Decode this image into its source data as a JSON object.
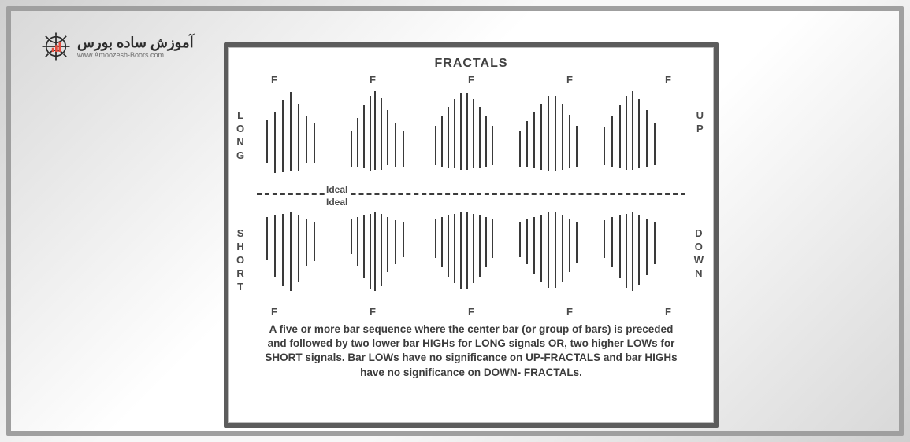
{
  "logo": {
    "line1": "آموزش ساده بورس",
    "line2": "www.Amoozesh-Boors.com"
  },
  "panel": {
    "title": "FRACTALS",
    "labels": {
      "long": "LONG",
      "up": "UP",
      "short": "SHORT",
      "down": "DOWN",
      "F": "F",
      "ideal": "Ideal"
    },
    "f_positions": [
      52,
      158,
      270,
      380,
      490
    ],
    "divider_color": "#3b3b3b",
    "bar_color": "#3a3a3a",
    "groups_top": [
      {
        "bars": [
          [
            0,
            40,
            55
          ],
          [
            10,
            30,
            78
          ],
          [
            20,
            15,
            92
          ],
          [
            30,
            5,
            100
          ],
          [
            40,
            20,
            85
          ],
          [
            50,
            35,
            60
          ],
          [
            60,
            45,
            50
          ]
        ]
      },
      {
        "bars": [
          [
            0,
            55,
            45
          ],
          [
            8,
            38,
            62
          ],
          [
            16,
            22,
            80
          ],
          [
            24,
            10,
            95
          ],
          [
            30,
            4,
            100
          ],
          [
            38,
            12,
            92
          ],
          [
            46,
            28,
            70
          ],
          [
            56,
            44,
            56
          ],
          [
            66,
            55,
            45
          ]
        ]
      },
      {
        "bars": [
          [
            0,
            48,
            50
          ],
          [
            8,
            36,
            64
          ],
          [
            16,
            24,
            78
          ],
          [
            24,
            14,
            88
          ],
          [
            32,
            6,
            98
          ],
          [
            40,
            6,
            98
          ],
          [
            48,
            14,
            88
          ],
          [
            56,
            24,
            78
          ],
          [
            64,
            36,
            64
          ],
          [
            72,
            48,
            50
          ]
        ]
      },
      {
        "bars": [
          [
            0,
            55,
            45
          ],
          [
            9,
            42,
            58
          ],
          [
            18,
            30,
            72
          ],
          [
            27,
            20,
            84
          ],
          [
            36,
            10,
            96
          ],
          [
            45,
            10,
            96
          ],
          [
            54,
            20,
            84
          ],
          [
            63,
            34,
            68
          ],
          [
            72,
            48,
            52
          ]
        ]
      },
      {
        "bars": [
          [
            0,
            50,
            48
          ],
          [
            10,
            36,
            64
          ],
          [
            20,
            22,
            80
          ],
          [
            28,
            10,
            94
          ],
          [
            36,
            4,
            100
          ],
          [
            44,
            14,
            88
          ],
          [
            54,
            28,
            72
          ],
          [
            64,
            44,
            54
          ]
        ]
      }
    ],
    "groups_bot": [
      {
        "bars": [
          [
            0,
            8,
            55
          ],
          [
            10,
            6,
            78
          ],
          [
            20,
            4,
            92
          ],
          [
            30,
            2,
            100
          ],
          [
            40,
            6,
            85
          ],
          [
            50,
            10,
            60
          ],
          [
            60,
            14,
            50
          ]
        ]
      },
      {
        "bars": [
          [
            0,
            10,
            45
          ],
          [
            8,
            8,
            62
          ],
          [
            16,
            6,
            80
          ],
          [
            24,
            4,
            95
          ],
          [
            30,
            2,
            100
          ],
          [
            38,
            4,
            92
          ],
          [
            46,
            8,
            70
          ],
          [
            56,
            12,
            56
          ],
          [
            66,
            14,
            45
          ]
        ]
      },
      {
        "bars": [
          [
            0,
            10,
            50
          ],
          [
            8,
            8,
            64
          ],
          [
            16,
            6,
            78
          ],
          [
            24,
            4,
            88
          ],
          [
            32,
            2,
            98
          ],
          [
            40,
            2,
            98
          ],
          [
            48,
            4,
            88
          ],
          [
            56,
            6,
            78
          ],
          [
            64,
            8,
            64
          ],
          [
            72,
            10,
            50
          ]
        ]
      },
      {
        "bars": [
          [
            0,
            14,
            45
          ],
          [
            9,
            10,
            58
          ],
          [
            18,
            8,
            72
          ],
          [
            27,
            6,
            84
          ],
          [
            36,
            2,
            96
          ],
          [
            45,
            2,
            96
          ],
          [
            54,
            6,
            84
          ],
          [
            63,
            10,
            68
          ],
          [
            72,
            14,
            52
          ]
        ]
      },
      {
        "bars": [
          [
            0,
            12,
            48
          ],
          [
            10,
            8,
            64
          ],
          [
            20,
            6,
            80
          ],
          [
            28,
            4,
            94
          ],
          [
            36,
            2,
            100
          ],
          [
            44,
            6,
            88
          ],
          [
            54,
            10,
            72
          ],
          [
            64,
            14,
            54
          ]
        ]
      }
    ],
    "caption": "A five or more bar sequence where the center bar (or group of bars) is preceded and followed by two lower bar HIGHs for LONG signals OR, two higher LOWs for SHORT signals. Bar LOWs have no significance on UP-FRACTALS and bar HIGHs have no significance on DOWN- FRACTALs."
  }
}
